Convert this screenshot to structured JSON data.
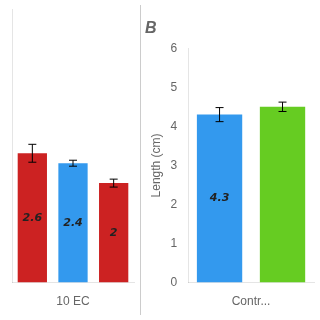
{
  "chart_data": [
    {
      "type": "bar",
      "categories": [
        null,
        null,
        null
      ],
      "values": [
        2.6,
        2.4,
        2
      ],
      "errors": [
        0.18,
        0.06,
        0.08
      ],
      "colors": [
        "#cc2222",
        "#3399ee",
        "#cc2222"
      ],
      "xlabel": "10 EC",
      "ylim": [
        0,
        5.5
      ],
      "data_labels": true,
      "tick_labels": false,
      "grid": false
    },
    {
      "type": "bar",
      "title": "B",
      "categories": [
        null,
        null
      ],
      "values": [
        4.3,
        4.5
      ],
      "errors": [
        0.18,
        0.12
      ],
      "colors": [
        "#3399ee",
        "#66cc22"
      ],
      "xlabel": "Contr...",
      "ylabel": "Length (cm)",
      "ylim": [
        0,
        6
      ],
      "yticks": [
        0,
        1,
        2,
        3,
        4,
        5,
        6
      ],
      "data_labels": true,
      "value_labels": [
        "4.3",
        null
      ],
      "tick_labels": "y",
      "grid": false
    }
  ]
}
